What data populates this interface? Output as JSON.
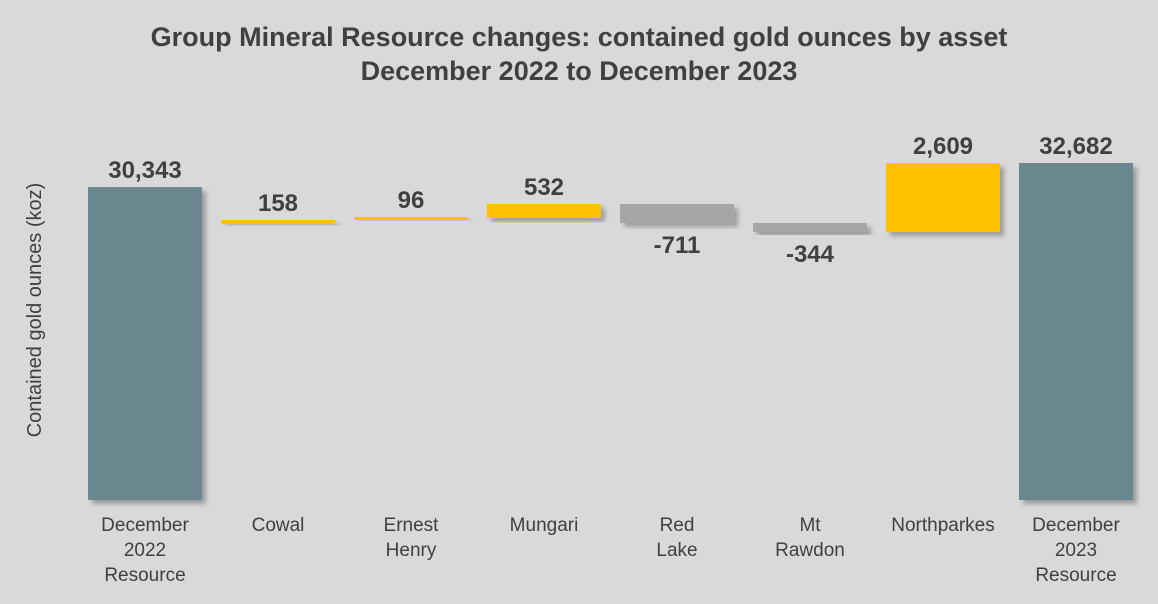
{
  "chart_data": {
    "type": "bar",
    "subtype": "waterfall",
    "title": "Group Mineral Resource changes: contained gold ounces by asset",
    "subtitle": "December 2022 to December 2023",
    "ylabel": "Contained gold ounces (koz)",
    "xlabel": "",
    "categories": [
      [
        "December",
        "2022",
        "Resource"
      ],
      [
        "Cowal"
      ],
      [
        "Ernest",
        "Henry"
      ],
      [
        "Mungari"
      ],
      [
        "Red",
        "Lake"
      ],
      [
        "Mt",
        "Rawdon"
      ],
      [
        "Northparkes"
      ],
      [
        "December",
        "2023",
        "Resource"
      ]
    ],
    "values": [
      30343,
      158,
      96,
      532,
      -711,
      -344,
      2609,
      32682
    ],
    "bar_kinds": [
      "total",
      "change",
      "change",
      "change",
      "change",
      "change",
      "change",
      "total"
    ],
    "data_labels": [
      "30,343",
      "158",
      "96",
      "532",
      "-711",
      "-344",
      "2,609",
      "32,682"
    ],
    "grid": false,
    "legend": "none",
    "colors": {
      "total": "#6b8790",
      "increase": "#ffc000",
      "decrease": "#a6a6a6",
      "text": "#404040",
      "background": "#d9d9d9"
    }
  }
}
